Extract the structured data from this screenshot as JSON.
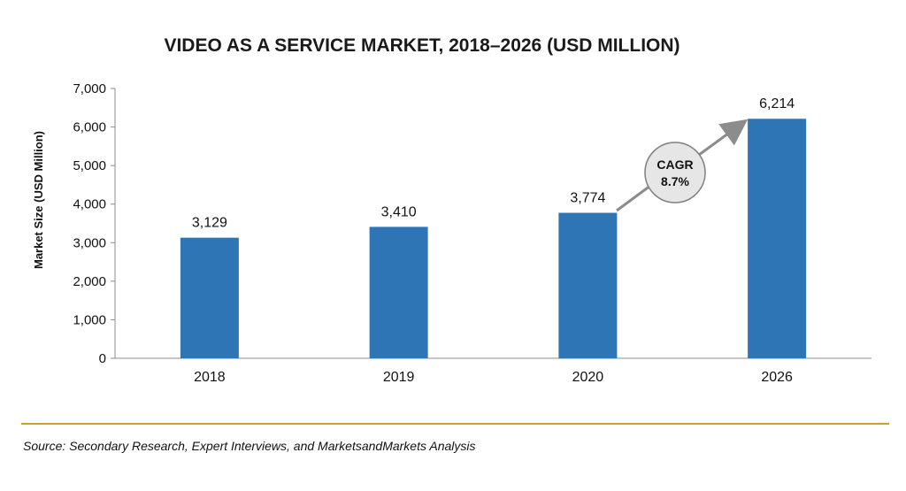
{
  "chart_data": {
    "type": "bar",
    "title": "VIDEO AS A SERVICE MARKET, 2018–2026 (USD MILLION)",
    "ylabel": "Market Size (USD Million)",
    "xlabel": "",
    "categories": [
      "2018",
      "2019",
      "2020",
      "2026"
    ],
    "values": [
      3129,
      3410,
      3774,
      6214
    ],
    "value_labels": [
      "3,129",
      "3,410",
      "3,774",
      "6,214"
    ],
    "ylim": [
      0,
      7000
    ],
    "yticks": [
      0,
      1000,
      2000,
      3000,
      4000,
      5000,
      6000,
      7000
    ],
    "ytick_labels": [
      "0",
      "1,000",
      "2,000",
      "3,000",
      "4,000",
      "5,000",
      "6,000",
      "7,000"
    ],
    "grid": false,
    "legend": "none",
    "bar_color": "#2e75b6",
    "annotation": {
      "line1": "CAGR",
      "line2": "8.7%"
    }
  },
  "source": "Source: Secondary Research, Expert Interviews, and MarketsandMarkets Analysis",
  "colors": {
    "rule": "#c9a227",
    "arrow": "#8c8c8c",
    "bubble_fill": "#e6e6e6",
    "bubble_stroke": "#7f7f7f"
  }
}
